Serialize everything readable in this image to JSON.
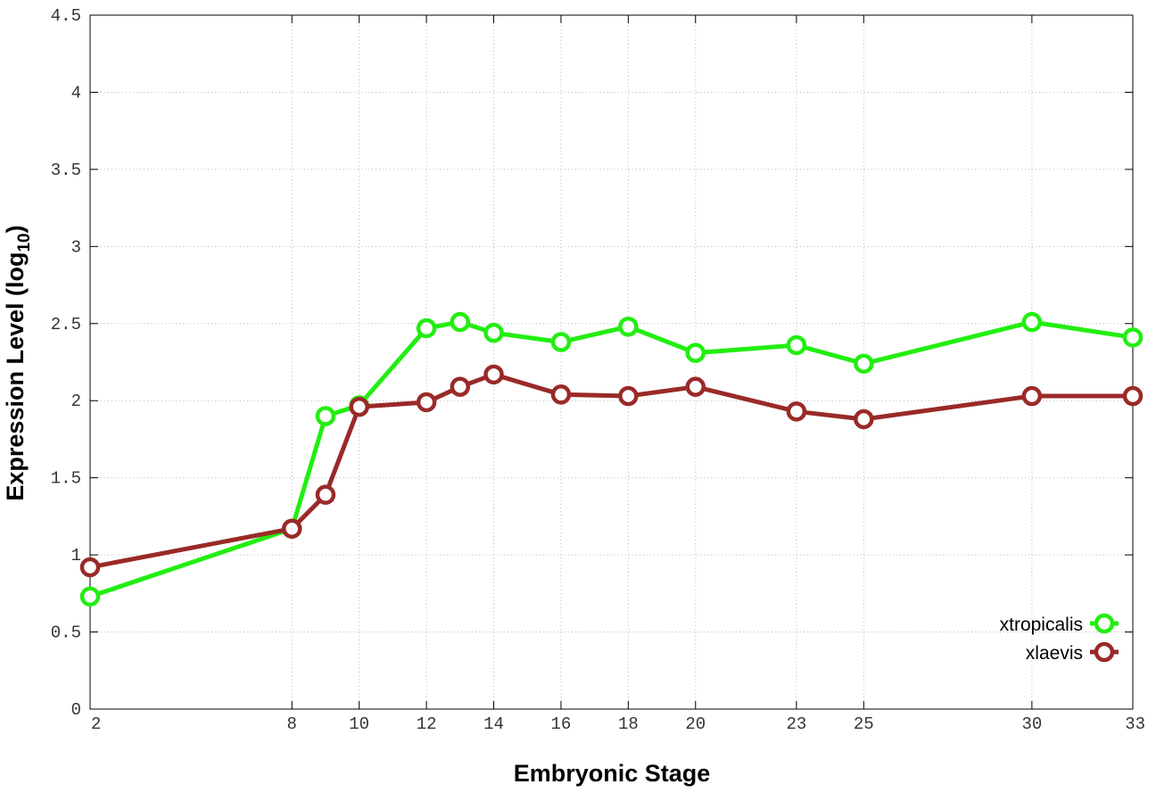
{
  "chart_data": {
    "type": "line",
    "title": "",
    "xlabel": "Embryonic Stage",
    "ylabel_main": "Expression Level (log",
    "ylabel_sub": "10",
    "ylabel_close": ")",
    "x": [
      2,
      8,
      9,
      10,
      12,
      13,
      14,
      16,
      18,
      20,
      23,
      25,
      30,
      33
    ],
    "x_tick_labels": [
      "2",
      "8",
      "10",
      "12",
      "14",
      "16",
      "18",
      "20",
      "23",
      "25",
      "30",
      "33"
    ],
    "y_tick_labels": [
      "0",
      "0.5",
      "1",
      "1.5",
      "2",
      "2.5",
      "3",
      "3.5",
      "4",
      "4.5"
    ],
    "xlim": [
      2,
      33
    ],
    "ylim": [
      0,
      4.5
    ],
    "grid": true,
    "legend_position": "bottom-right",
    "series": [
      {
        "name": "xtropicalis",
        "color": "#22ee11",
        "values": [
          0.73,
          1.17,
          1.9,
          1.97,
          2.47,
          2.51,
          2.44,
          2.38,
          2.48,
          2.31,
          2.36,
          2.24,
          2.51,
          2.41
        ]
      },
      {
        "name": "xlaevis",
        "color": "#992a28",
        "values": [
          0.92,
          1.17,
          1.39,
          1.96,
          1.99,
          2.09,
          2.17,
          2.04,
          2.03,
          2.09,
          1.93,
          1.88,
          2.03,
          2.03
        ]
      }
    ]
  }
}
